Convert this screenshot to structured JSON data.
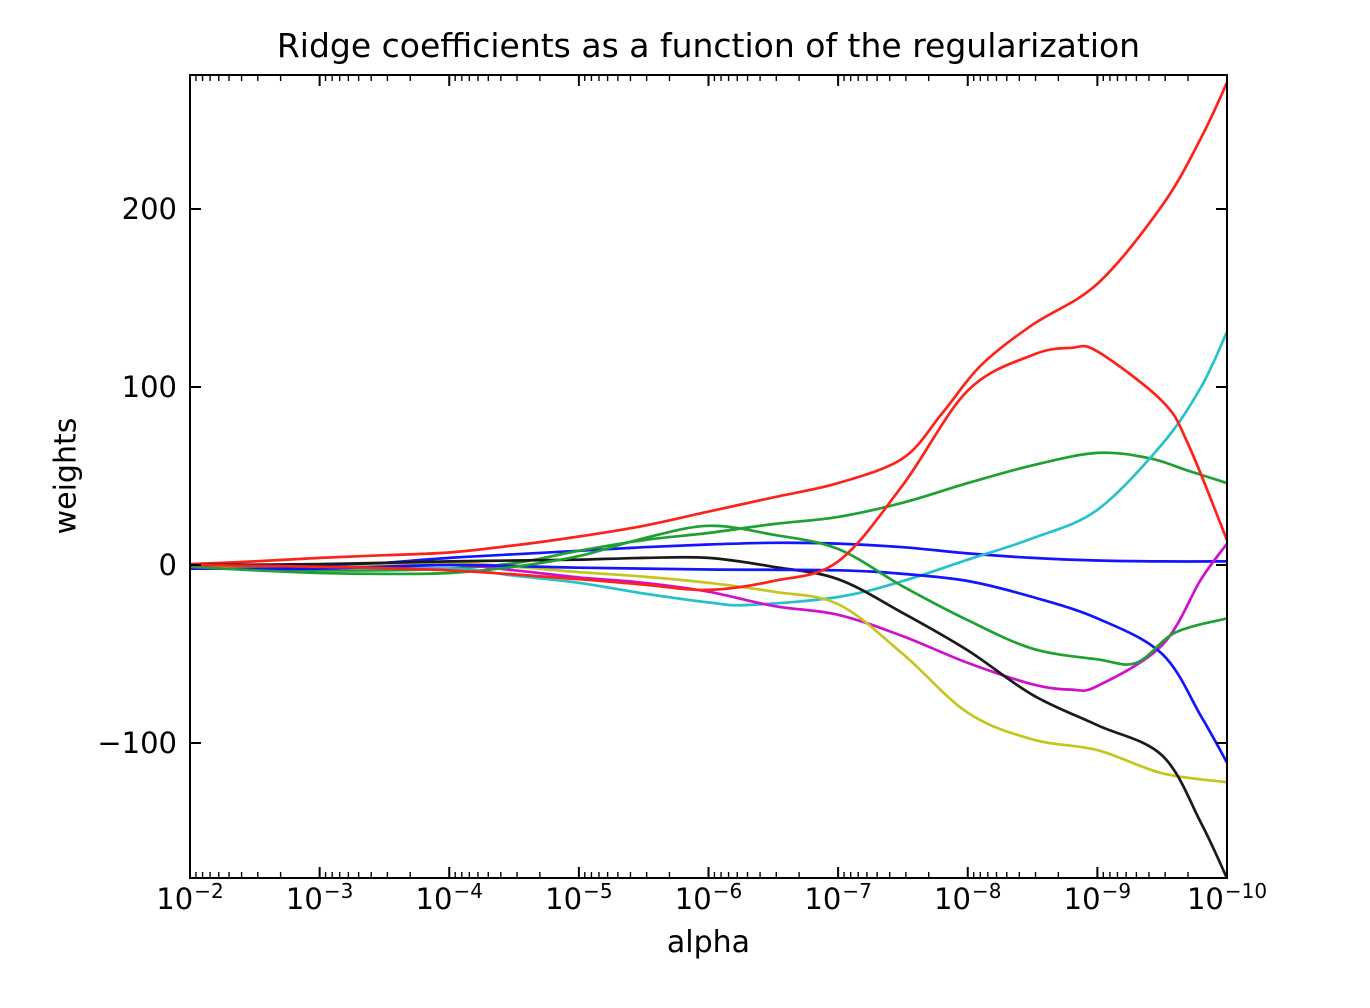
{
  "figure": {
    "background": "#ffffff",
    "axes_color": "#000000"
  },
  "chart_data": {
    "type": "line",
    "title": "Ridge coefficients as a function of the regularization",
    "xlabel": "alpha",
    "ylabel": "weights",
    "x_scale": "log",
    "x_axis_inverted": true,
    "xlim_log10": [
      -2,
      -10
    ],
    "ylim": [
      -176,
      275
    ],
    "grid": false,
    "legend": "none",
    "x_ticks": [
      {
        "log10": -2,
        "base": "10",
        "exp": "−2"
      },
      {
        "log10": -3,
        "base": "10",
        "exp": "−3"
      },
      {
        "log10": -4,
        "base": "10",
        "exp": "−4"
      },
      {
        "log10": -5,
        "base": "10",
        "exp": "−5"
      },
      {
        "log10": -6,
        "base": "10",
        "exp": "−6"
      },
      {
        "log10": -7,
        "base": "10",
        "exp": "−7"
      },
      {
        "log10": -8,
        "base": "10",
        "exp": "−8"
      },
      {
        "log10": -9,
        "base": "10",
        "exp": "−9"
      },
      {
        "log10": -10,
        "base": "10",
        "exp": "−10"
      }
    ],
    "y_ticks": [
      {
        "value": 200,
        "label": "200"
      },
      {
        "value": 100,
        "label": "100"
      },
      {
        "value": 0,
        "label": "0"
      },
      {
        "value": -100,
        "label": "−100"
      }
    ],
    "series": [
      {
        "name": "coef-1-blue",
        "color": "#1414ff",
        "points": [
          [
            -2,
            -1
          ],
          [
            -3,
            -1
          ],
          [
            -4,
            4
          ],
          [
            -4.5,
            6
          ],
          [
            -5,
            8
          ],
          [
            -5.5,
            10
          ],
          [
            -6,
            11.5
          ],
          [
            -6.5,
            12.5
          ],
          [
            -7,
            12
          ],
          [
            -7.5,
            10
          ],
          [
            -8,
            6.5
          ],
          [
            -8.5,
            4
          ],
          [
            -9,
            2.5
          ],
          [
            -9.5,
            2
          ],
          [
            -10,
            2
          ]
        ]
      },
      {
        "name": "coef-2-green",
        "color": "#1fa032",
        "points": [
          [
            -2,
            -1
          ],
          [
            -2.5,
            -2
          ],
          [
            -3,
            -3
          ],
          [
            -3.5,
            -3
          ],
          [
            -4,
            -2
          ],
          [
            -4.5,
            1
          ],
          [
            -5,
            8
          ],
          [
            -5.5,
            14
          ],
          [
            -6,
            18
          ],
          [
            -6.5,
            23
          ],
          [
            -7,
            27
          ],
          [
            -7.5,
            35
          ],
          [
            -8,
            46
          ],
          [
            -8.5,
            56
          ],
          [
            -9,
            63
          ],
          [
            -9.4,
            60
          ],
          [
            -9.7,
            53
          ],
          [
            -10,
            46
          ]
        ]
      },
      {
        "name": "coef-3-red",
        "color": "#fb231a",
        "points": [
          [
            -2,
            0.5
          ],
          [
            -2.5,
            2
          ],
          [
            -3,
            4
          ],
          [
            -3.5,
            5.5
          ],
          [
            -4,
            7
          ],
          [
            -4.5,
            11
          ],
          [
            -5,
            16
          ],
          [
            -5.5,
            22
          ],
          [
            -6,
            30
          ],
          [
            -6.5,
            38
          ],
          [
            -7,
            46
          ],
          [
            -7.5,
            60
          ],
          [
            -7.8,
            85
          ],
          [
            -8.1,
            112
          ],
          [
            -8.5,
            135
          ],
          [
            -9,
            158
          ],
          [
            -9.5,
            202
          ],
          [
            -9.8,
            240
          ],
          [
            -10,
            271
          ]
        ]
      },
      {
        "name": "coef-4-cyan",
        "color": "#27c1c9",
        "points": [
          [
            -2,
            -0.5
          ],
          [
            -3,
            -2
          ],
          [
            -4,
            -2
          ],
          [
            -4.5,
            -6
          ],
          [
            -5,
            -10
          ],
          [
            -5.5,
            -16
          ],
          [
            -6,
            -21
          ],
          [
            -6.3,
            -22.5
          ],
          [
            -7,
            -18
          ],
          [
            -7.5,
            -9
          ],
          [
            -8,
            3
          ],
          [
            -8.5,
            15
          ],
          [
            -9,
            31
          ],
          [
            -9.5,
            68
          ],
          [
            -9.8,
            100
          ],
          [
            -10,
            131
          ]
        ]
      },
      {
        "name": "coef-5-magenta",
        "color": "#cf10cf",
        "points": [
          [
            -2,
            -1
          ],
          [
            -3,
            -2
          ],
          [
            -4,
            0
          ],
          [
            -4.5,
            -3
          ],
          [
            -5,
            -7
          ],
          [
            -5.5,
            -10
          ],
          [
            -6,
            -15
          ],
          [
            -6.5,
            -23
          ],
          [
            -7,
            -28
          ],
          [
            -7.5,
            -40
          ],
          [
            -8,
            -55
          ],
          [
            -8.5,
            -67
          ],
          [
            -8.8,
            -70
          ],
          [
            -9,
            -68
          ],
          [
            -9.5,
            -45
          ],
          [
            -9.8,
            -8
          ],
          [
            -10,
            12
          ]
        ]
      },
      {
        "name": "coef-6-yellow",
        "color": "#c5c520",
        "points": [
          [
            -2,
            -0.5
          ],
          [
            -3,
            -1.5
          ],
          [
            -4,
            1
          ],
          [
            -4.5,
            -1
          ],
          [
            -5,
            -4
          ],
          [
            -5.5,
            -6.5
          ],
          [
            -6,
            -10
          ],
          [
            -6.5,
            -15
          ],
          [
            -7,
            -22
          ],
          [
            -7.5,
            -50
          ],
          [
            -8,
            -83
          ],
          [
            -8.5,
            -98
          ],
          [
            -9,
            -104
          ],
          [
            -9.5,
            -117
          ],
          [
            -10,
            -122
          ]
        ]
      },
      {
        "name": "coef-7-black",
        "color": "#1a1a1a",
        "points": [
          [
            -2,
            0
          ],
          [
            -3,
            0.5
          ],
          [
            -4,
            2
          ],
          [
            -4.5,
            2.5
          ],
          [
            -5,
            3
          ],
          [
            -5.5,
            4
          ],
          [
            -6,
            4
          ],
          [
            -6.5,
            -1
          ],
          [
            -7,
            -8
          ],
          [
            -7.5,
            -27
          ],
          [
            -8,
            -48
          ],
          [
            -8.5,
            -73
          ],
          [
            -9,
            -90
          ],
          [
            -9.5,
            -107
          ],
          [
            -9.8,
            -145
          ],
          [
            -10,
            -176
          ]
        ]
      },
      {
        "name": "coef-8-blue",
        "color": "#1414ff",
        "points": [
          [
            -2,
            -2
          ],
          [
            -3,
            -2
          ],
          [
            -4,
            0
          ],
          [
            -5,
            -1.5
          ],
          [
            -6,
            -2.5
          ],
          [
            -7,
            -3
          ],
          [
            -7.5,
            -5
          ],
          [
            -8,
            -9
          ],
          [
            -8.5,
            -18
          ],
          [
            -9,
            -30
          ],
          [
            -9.5,
            -50
          ],
          [
            -9.8,
            -85
          ],
          [
            -10,
            -111
          ]
        ]
      },
      {
        "name": "coef-9-green",
        "color": "#1fa032",
        "points": [
          [
            -2,
            -1
          ],
          [
            -2.5,
            -3
          ],
          [
            -3,
            -4.5
          ],
          [
            -3.5,
            -5
          ],
          [
            -4,
            -4.5
          ],
          [
            -4.5,
            -1
          ],
          [
            -5,
            5
          ],
          [
            -5.5,
            15
          ],
          [
            -6,
            22
          ],
          [
            -6.5,
            17
          ],
          [
            -7,
            9
          ],
          [
            -7.5,
            -12
          ],
          [
            -8,
            -31
          ],
          [
            -8.5,
            -47
          ],
          [
            -9,
            -53
          ],
          [
            -9.3,
            -55
          ],
          [
            -9.6,
            -38
          ],
          [
            -10,
            -30
          ]
        ]
      },
      {
        "name": "coef-10-red",
        "color": "#fb231a",
        "points": [
          [
            -2,
            0
          ],
          [
            -3,
            -1
          ],
          [
            -4,
            -3
          ],
          [
            -5,
            -8
          ],
          [
            -5.5,
            -11
          ],
          [
            -6,
            -14
          ],
          [
            -6.5,
            -9
          ],
          [
            -7,
            2
          ],
          [
            -7.5,
            45
          ],
          [
            -8,
            98
          ],
          [
            -8.5,
            118
          ],
          [
            -8.8,
            122
          ],
          [
            -9,
            120
          ],
          [
            -9.5,
            92
          ],
          [
            -9.7,
            68
          ],
          [
            -10,
            14
          ]
        ]
      }
    ]
  }
}
